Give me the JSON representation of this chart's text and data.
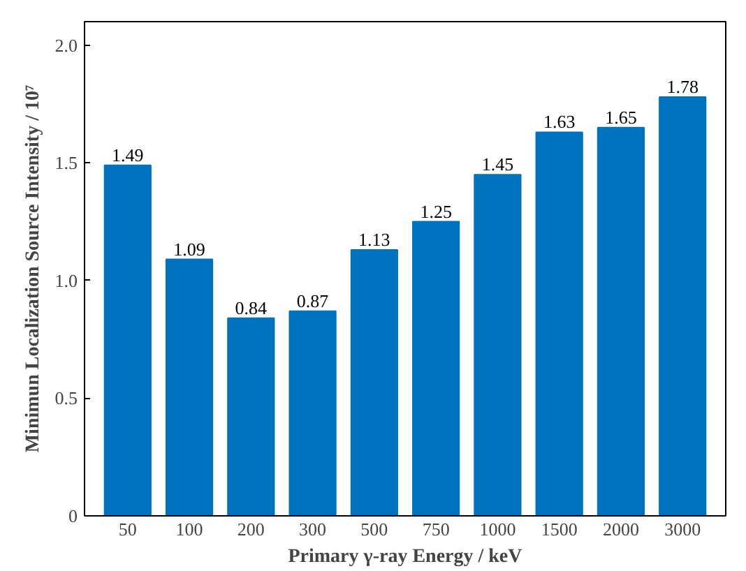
{
  "chart_data": {
    "type": "bar",
    "xlabel": "Primary γ-ray Energy / keV",
    "ylabel": "Minimun Localization Source Intensity / 10⁷",
    "categories": [
      "50",
      "100",
      "200",
      "300",
      "500",
      "750",
      "1000",
      "1500",
      "2000",
      "3000"
    ],
    "values": [
      1.49,
      1.09,
      0.84,
      0.87,
      1.13,
      1.25,
      1.45,
      1.63,
      1.65,
      1.78
    ],
    "color": "#0072bd",
    "data_labels": true,
    "grid": false,
    "ylim": [
      0,
      2.1
    ],
    "yticks": [
      0,
      {
        "value": 0.5,
        "label": "0.5"
      },
      {
        "value": 1,
        "label": "1.0"
      },
      {
        "value": 1.5,
        "label": "1.5"
      },
      {
        "value": 2,
        "label": "2.0"
      }
    ]
  }
}
